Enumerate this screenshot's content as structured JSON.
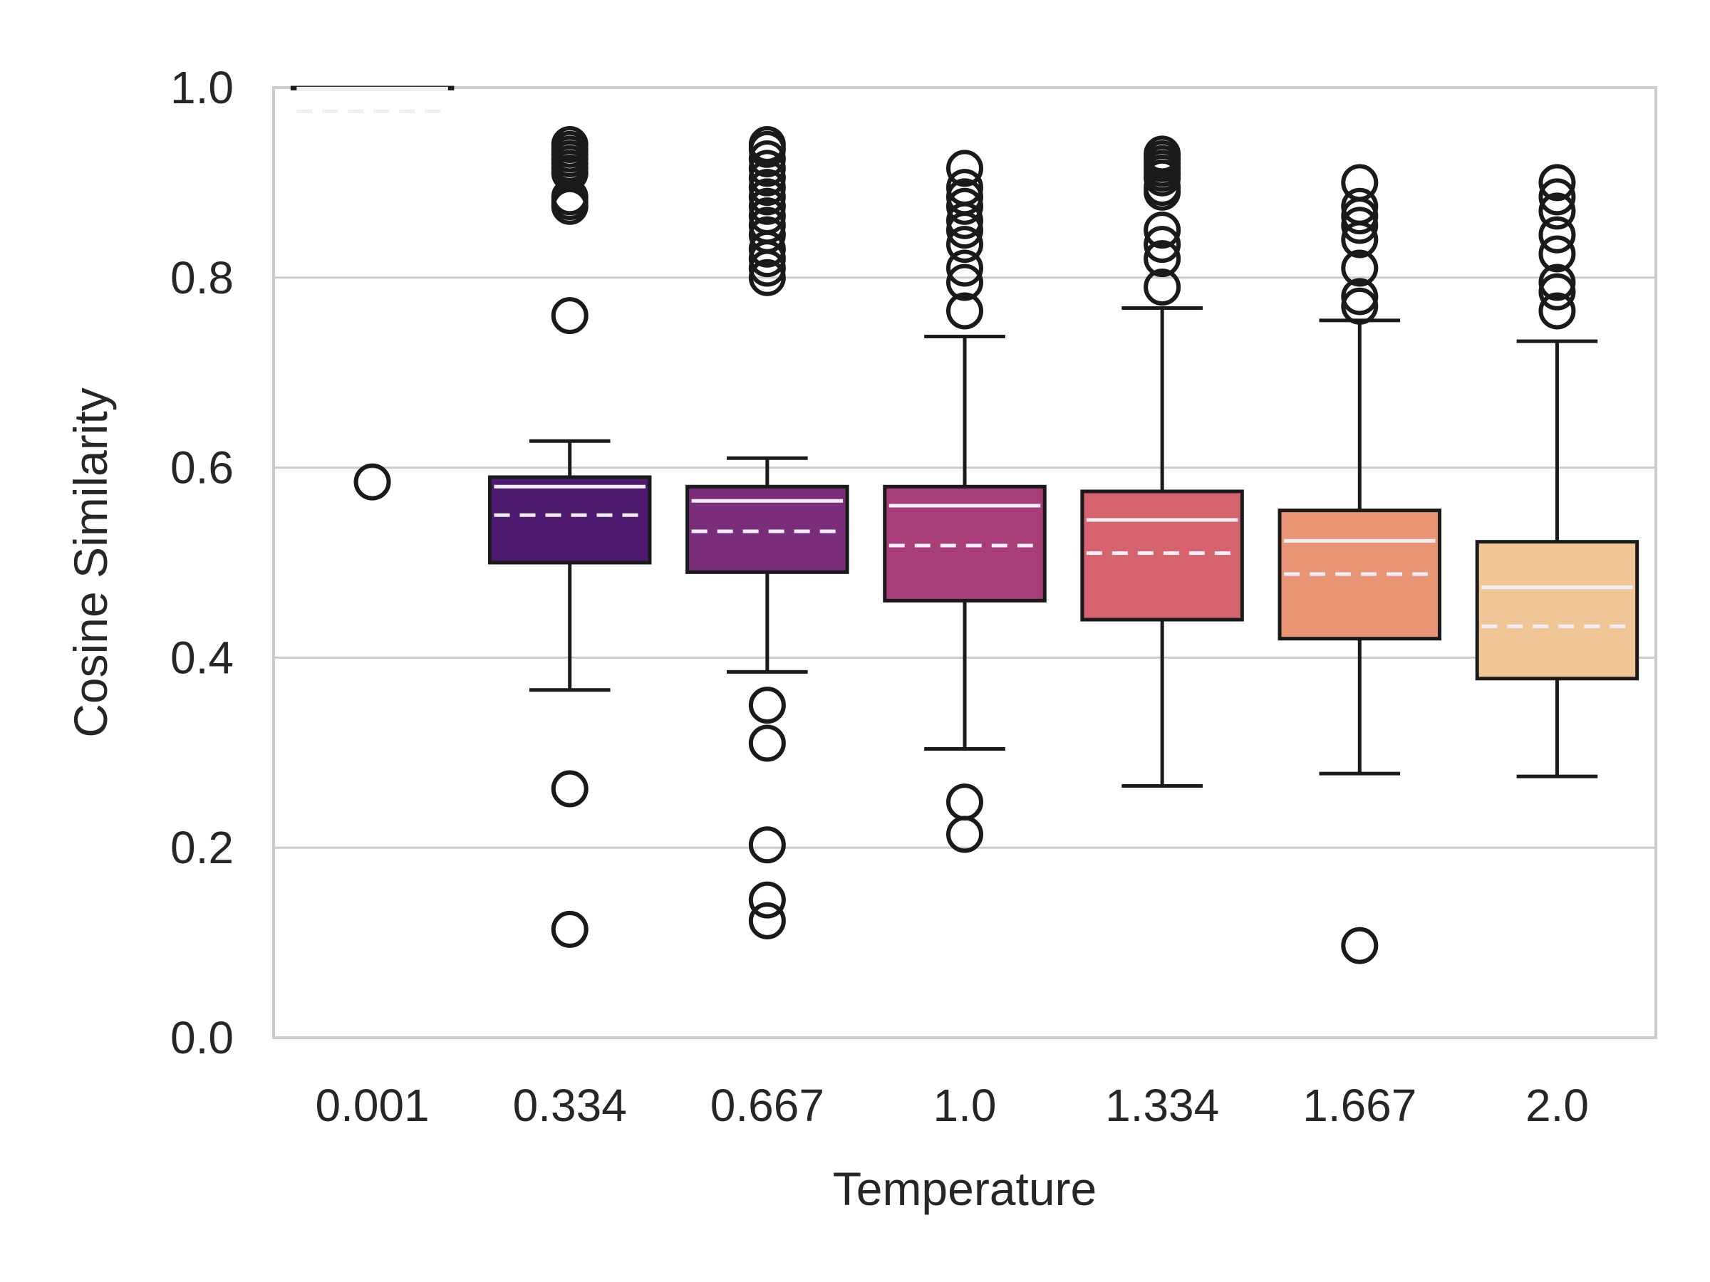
{
  "chart_data": {
    "type": "box",
    "title": "",
    "xlabel": "Temperature",
    "ylabel": "Cosine Similarity",
    "ylim": [
      0.0,
      1.0
    ],
    "yticks": [
      "0.0",
      "0.2",
      "0.4",
      "0.6",
      "0.8",
      "1.0"
    ],
    "categories": [
      "0.001",
      "0.334",
      "0.667",
      "1.0",
      "1.334",
      "1.667",
      "2.0"
    ],
    "grid": "horizontal",
    "median_line": "solid",
    "mean_line": "dashed",
    "colors": {
      "0.001": "#3b0f70",
      "0.334": "#4e1a70",
      "0.667": "#7a2d79",
      "1.0": "#a73e78",
      "1.334": "#d4636d",
      "1.667": "#e89475",
      "2.0": "#f1c696",
      "median": "#f2eef6",
      "stroke": "#1a1a1a",
      "grid": "#cccccc"
    },
    "boxes": [
      {
        "category": "0.001",
        "q1": 0.999,
        "median": 0.999,
        "q3": 1.0,
        "mean": 0.975,
        "whisker_low": 0.999,
        "whisker_high": 1.0,
        "outliers": [
          0.585
        ]
      },
      {
        "category": "0.334",
        "q1": 0.5,
        "median": 0.58,
        "q3": 0.59,
        "mean": 0.55,
        "whisker_low": 0.366,
        "whisker_high": 0.628,
        "outliers": [
          0.76,
          0.875,
          0.88,
          0.885,
          0.91,
          0.915,
          0.92,
          0.925,
          0.93,
          0.935,
          0.94,
          0.262,
          0.114
        ]
      },
      {
        "category": "0.667",
        "q1": 0.49,
        "median": 0.565,
        "q3": 0.58,
        "mean": 0.533,
        "whisker_low": 0.385,
        "whisker_high": 0.61,
        "outliers": [
          0.8,
          0.81,
          0.82,
          0.83,
          0.845,
          0.855,
          0.865,
          0.875,
          0.885,
          0.895,
          0.905,
          0.915,
          0.925,
          0.935,
          0.94,
          0.35,
          0.31,
          0.203,
          0.145,
          0.123
        ]
      },
      {
        "category": "1.0",
        "q1": 0.46,
        "median": 0.56,
        "q3": 0.58,
        "mean": 0.518,
        "whisker_low": 0.304,
        "whisker_high": 0.738,
        "outliers": [
          0.765,
          0.795,
          0.81,
          0.835,
          0.85,
          0.86,
          0.875,
          0.885,
          0.895,
          0.915,
          0.248,
          0.214
        ]
      },
      {
        "category": "1.334",
        "q1": 0.44,
        "median": 0.545,
        "q3": 0.575,
        "mean": 0.51,
        "whisker_low": 0.265,
        "whisker_high": 0.768,
        "outliers": [
          0.79,
          0.82,
          0.835,
          0.85,
          0.89,
          0.895,
          0.905,
          0.91,
          0.915,
          0.92,
          0.925,
          0.93
        ]
      },
      {
        "category": "1.667",
        "q1": 0.42,
        "median": 0.523,
        "q3": 0.555,
        "mean": 0.488,
        "whisker_low": 0.278,
        "whisker_high": 0.755,
        "outliers": [
          0.77,
          0.78,
          0.81,
          0.84,
          0.855,
          0.865,
          0.875,
          0.9,
          0.097
        ]
      },
      {
        "category": "2.0",
        "q1": 0.378,
        "median": 0.474,
        "q3": 0.522,
        "mean": 0.433,
        "whisker_low": 0.275,
        "whisker_high": 0.733,
        "outliers": [
          0.765,
          0.785,
          0.795,
          0.825,
          0.845,
          0.87,
          0.885,
          0.9
        ]
      }
    ]
  }
}
